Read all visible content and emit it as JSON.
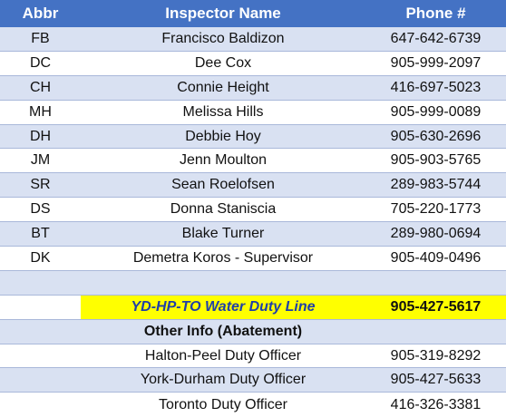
{
  "header": {
    "abbr": "Abbr",
    "name": "Inspector Name",
    "phone": "Phone #"
  },
  "inspectors": [
    {
      "abbr": "FB",
      "name": "Francisco Baldizon",
      "phone": "647-642-6739"
    },
    {
      "abbr": "DC",
      "name": "Dee Cox",
      "phone": "905-999-2097"
    },
    {
      "abbr": "CH",
      "name": "Connie Height",
      "phone": "416-697-5023"
    },
    {
      "abbr": "MH",
      "name": "Melissa Hills",
      "phone": "905-999-0089"
    },
    {
      "abbr": "DH",
      "name": "Debbie Hoy",
      "phone": "905-630-2696"
    },
    {
      "abbr": "JM",
      "name": "Jenn Moulton",
      "phone": "905-903-5765"
    },
    {
      "abbr": "SR",
      "name": "Sean Roelofsen",
      "phone": "289-983-5744"
    },
    {
      "abbr": "DS",
      "name": "Donna Staniscia",
      "phone": "705-220-1773"
    },
    {
      "abbr": "BT",
      "name": "Blake Turner",
      "phone": "289-980-0694"
    },
    {
      "abbr": "DK",
      "name": "Demetra Koros - Supervisor",
      "phone": "905-409-0496"
    }
  ],
  "duty_line": {
    "label": "YD-HP-TO Water Duty Line",
    "phone": "905-427-5617"
  },
  "other_info": {
    "heading": "Other Info (Abatement)",
    "rows": [
      {
        "name": "Halton-Peel Duty Officer",
        "phone": "905-319-8292"
      },
      {
        "name": "York-Durham Duty Officer",
        "phone": "905-427-5633"
      },
      {
        "name": "Toronto Duty Officer",
        "phone": "416-326-3381"
      }
    ]
  },
  "colors": {
    "header_bg": "#4472c4",
    "row_shade": "#d9e1f2",
    "duty_highlight": "#ffff00",
    "duty_text": "#1f3fa8"
  }
}
